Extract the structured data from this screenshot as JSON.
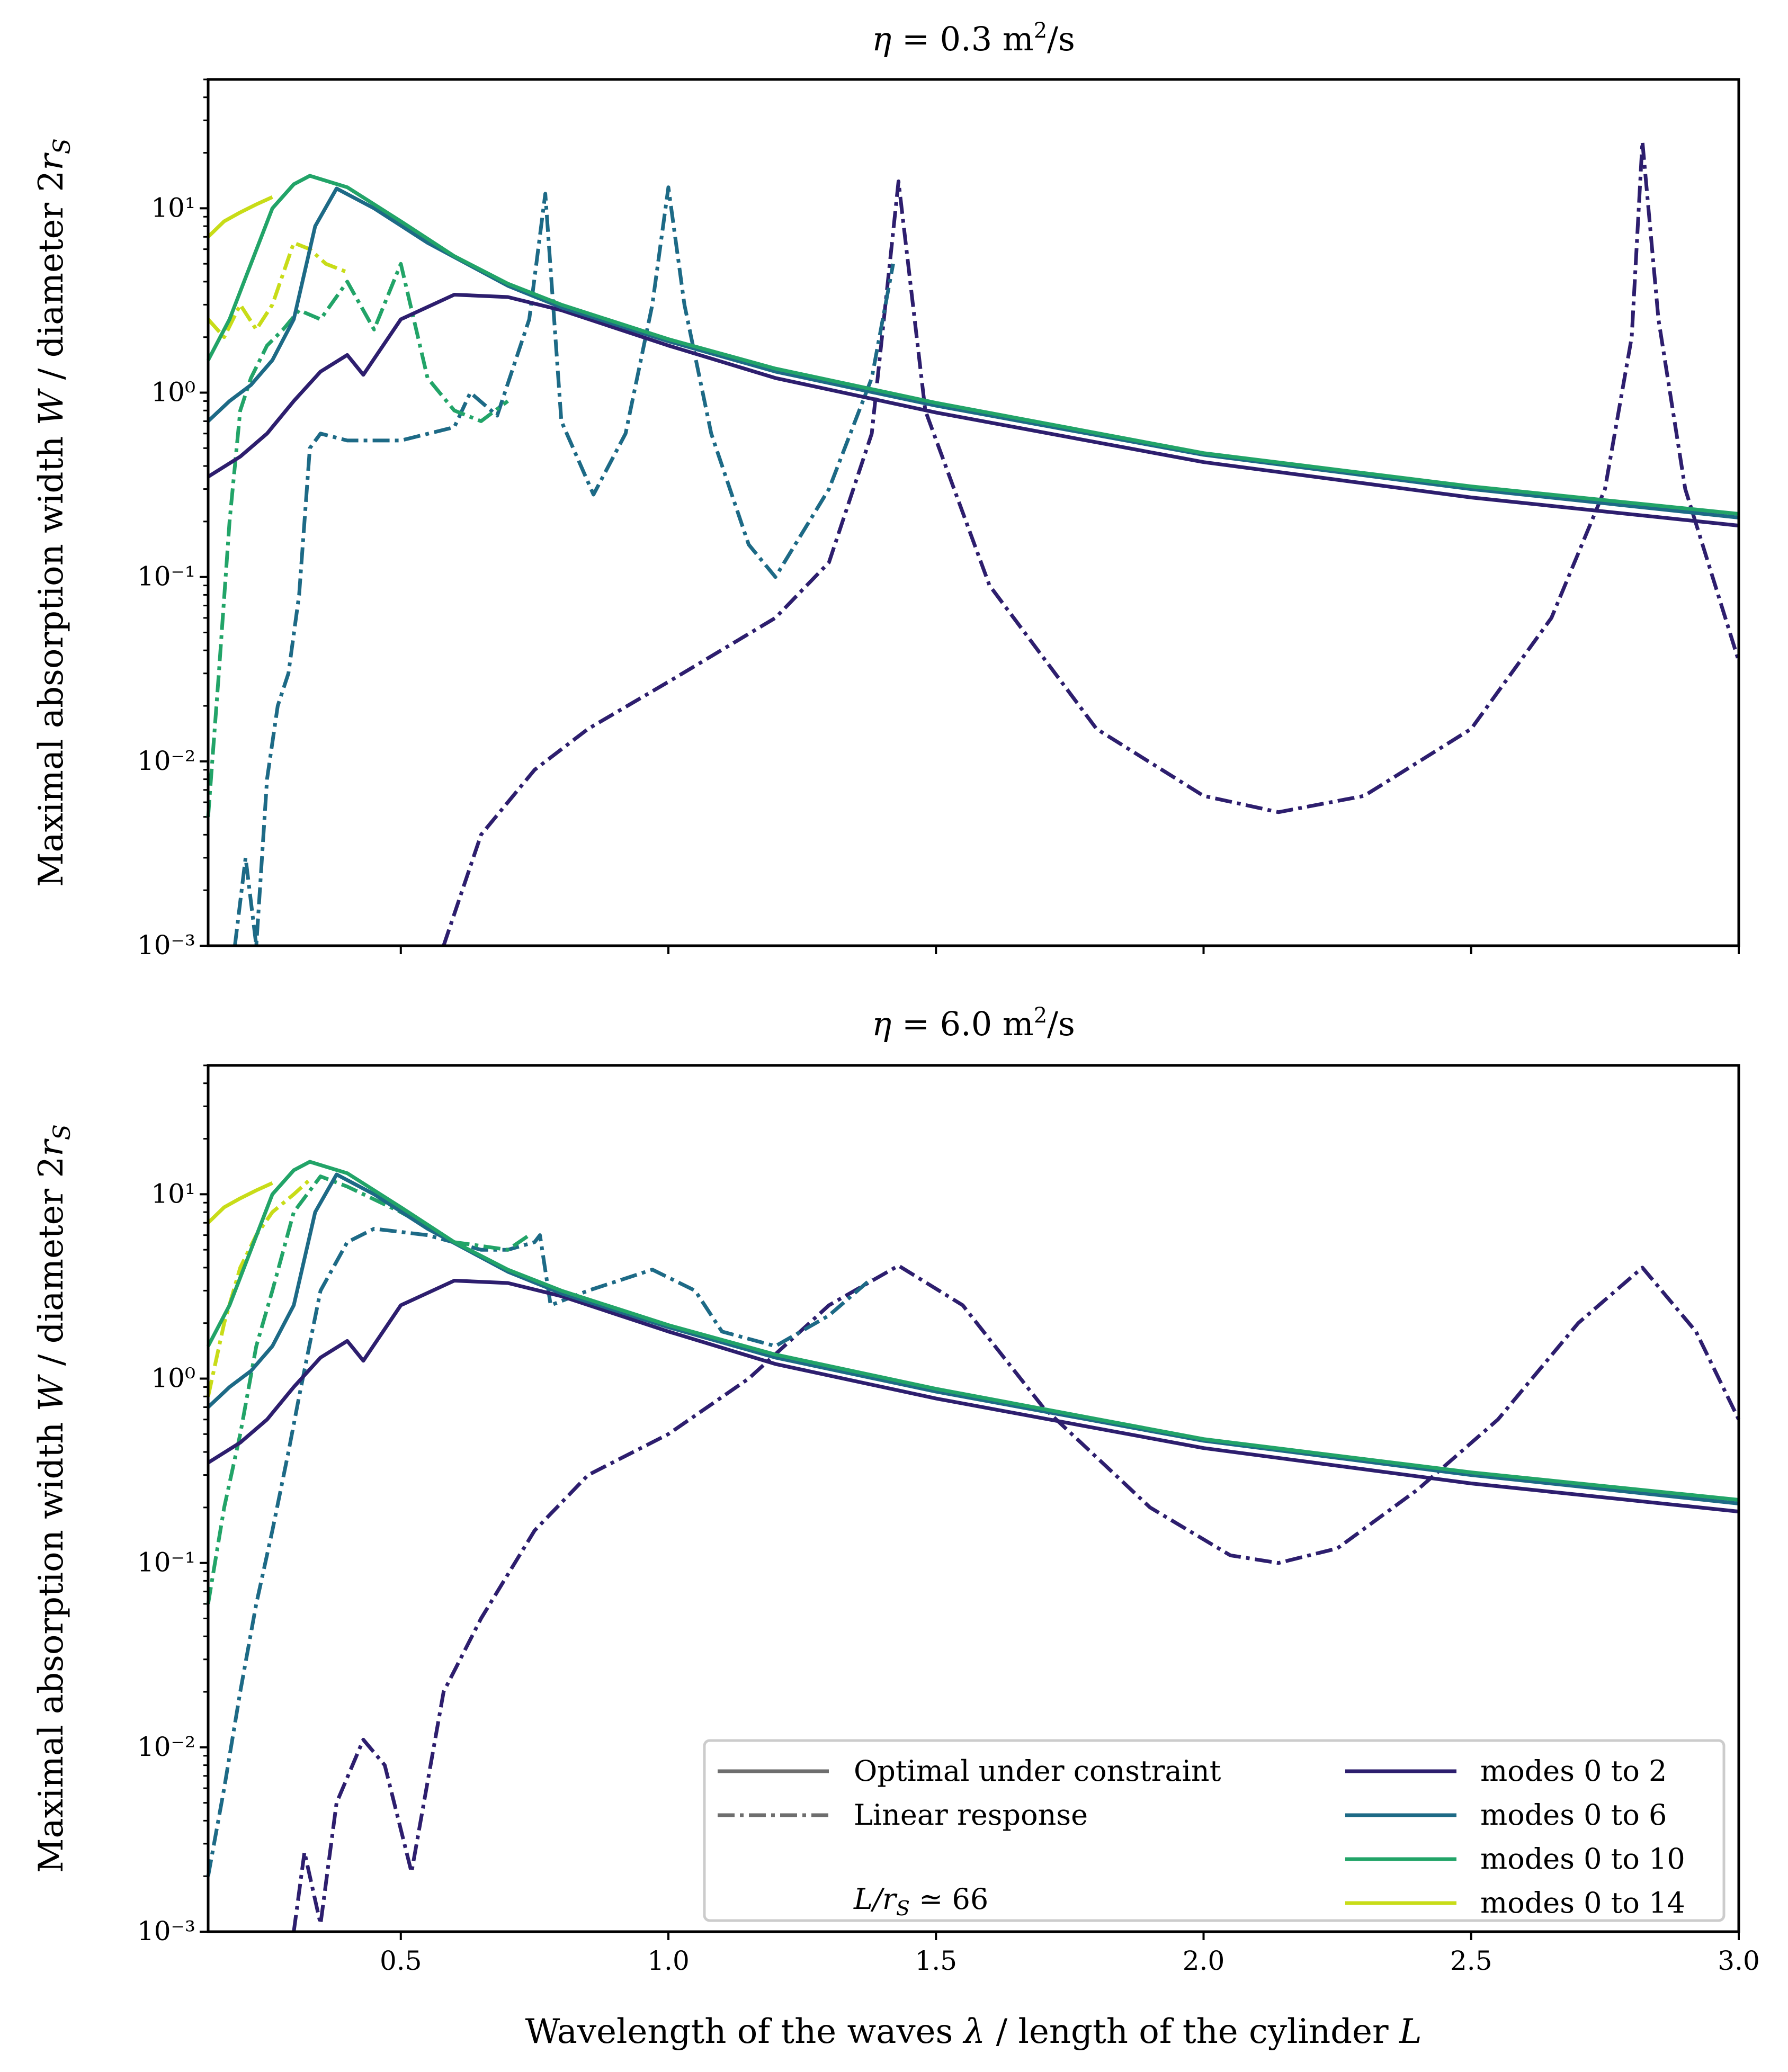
{
  "chart_data": [
    {
      "type": "line",
      "title": "η = 0.3 m²/s",
      "xlabel": "",
      "ylabel": "Maximal absorption width W / diameter 2r_S",
      "yscale": "log",
      "xlim": [
        0.14,
        3.0
      ],
      "ylim": [
        0.001,
        50
      ],
      "x_ticks": [
        "",
        "",
        "",
        "",
        "",
        ""
      ],
      "y_ticks": [
        "10⁻³",
        "10⁻²",
        "10⁻¹",
        "10⁰",
        "10¹"
      ],
      "series": [
        {
          "name": "modes 0 to 2 (optimal under constraint)",
          "color": "#2d1e6e",
          "style": "solid",
          "x": [
            0.14,
            0.2,
            0.25,
            0.3,
            0.35,
            0.4,
            0.43,
            0.5,
            0.6,
            0.7,
            0.8,
            1.0,
            1.2,
            1.5,
            2.0,
            2.5,
            3.0
          ],
          "y": [
            0.35,
            0.45,
            0.6,
            0.9,
            1.3,
            1.6,
            1.25,
            2.5,
            3.4,
            3.3,
            2.8,
            1.8,
            1.2,
            0.78,
            0.42,
            0.27,
            0.19
          ]
        },
        {
          "name": "modes 0 to 6 (optimal under constraint)",
          "color": "#1d6a86",
          "style": "solid",
          "x": [
            0.14,
            0.18,
            0.22,
            0.26,
            0.3,
            0.34,
            0.38,
            0.45,
            0.55,
            0.7,
            0.8,
            1.0,
            1.2,
            1.5,
            2.0,
            2.5,
            3.0
          ],
          "y": [
            0.7,
            0.9,
            1.1,
            1.5,
            2.5,
            8,
            12.8,
            10,
            6.5,
            3.8,
            2.9,
            1.9,
            1.3,
            0.85,
            0.46,
            0.3,
            0.21
          ]
        },
        {
          "name": "modes 0 to 10 (optimal under constraint)",
          "color": "#22a468",
          "style": "solid",
          "x": [
            0.14,
            0.18,
            0.22,
            0.26,
            0.3,
            0.33,
            0.4,
            0.5,
            0.6,
            0.7,
            0.8,
            1.0,
            1.2,
            1.5,
            2.0,
            2.5,
            3.0
          ],
          "y": [
            1.5,
            2.5,
            5,
            10,
            13.5,
            15,
            13,
            8.5,
            5.5,
            3.9,
            3.0,
            1.95,
            1.35,
            0.88,
            0.47,
            0.31,
            0.22
          ]
        },
        {
          "name": "modes 0 to 14 (optimal under constraint)",
          "color": "#c8dc18",
          "style": "solid",
          "x": [
            0.14,
            0.17,
            0.2,
            0.23,
            0.26
          ],
          "y": [
            7,
            8.5,
            9.5,
            10.5,
            11.5
          ]
        },
        {
          "name": "modes 0 to 2 (linear response)",
          "color": "#2d1e6e",
          "style": "dashdot",
          "x": [
            0.58,
            0.65,
            0.75,
            0.85,
            1.0,
            1.2,
            1.3,
            1.38,
            1.43,
            1.48,
            1.6,
            1.8,
            2.0,
            2.14,
            2.3,
            2.5,
            2.65,
            2.75,
            2.8,
            2.82,
            2.85,
            2.9,
            3.0
          ],
          "y": [
            0.001,
            0.004,
            0.009,
            0.015,
            0.027,
            0.06,
            0.12,
            0.6,
            14,
            0.8,
            0.09,
            0.015,
            0.0065,
            0.0053,
            0.0065,
            0.015,
            0.06,
            0.3,
            2,
            23,
            2.5,
            0.3,
            0.035
          ]
        },
        {
          "name": "modes 0 to 6 (linear response)",
          "color": "#1d6a86",
          "style": "dashdot",
          "x": [
            0.19,
            0.21,
            0.23,
            0.25,
            0.27,
            0.29,
            0.31,
            0.33,
            0.35,
            0.4,
            0.5,
            0.6,
            0.63,
            0.68,
            0.74,
            0.77,
            0.8,
            0.86,
            0.92,
            0.97,
            1.0,
            1.03,
            1.08,
            1.15,
            1.2,
            1.3,
            1.38,
            1.42
          ],
          "y": [
            0.001,
            0.003,
            0.001,
            0.008,
            0.02,
            0.03,
            0.08,
            0.5,
            0.6,
            0.55,
            0.55,
            0.65,
            1.0,
            0.75,
            2.5,
            12,
            0.7,
            0.28,
            0.6,
            3,
            13,
            3,
            0.6,
            0.15,
            0.1,
            0.3,
            1.2,
            5
          ]
        },
        {
          "name": "modes 0 to 10 (linear response)",
          "color": "#22a468",
          "style": "dashdot",
          "x": [
            0.14,
            0.16,
            0.18,
            0.2,
            0.22,
            0.25,
            0.28,
            0.31,
            0.35,
            0.4,
            0.45,
            0.5,
            0.55,
            0.6,
            0.65,
            0.7
          ],
          "y": [
            0.005,
            0.03,
            0.2,
            0.8,
            1.2,
            1.8,
            2.2,
            2.8,
            2.5,
            4,
            2.2,
            5,
            1.2,
            0.8,
            0.7,
            0.9
          ]
        },
        {
          "name": "modes 0 to 14 (linear response)",
          "color": "#c8dc18",
          "style": "dashdot",
          "x": [
            0.14,
            0.17,
            0.2,
            0.23,
            0.26,
            0.3,
            0.33,
            0.36,
            0.4
          ],
          "y": [
            2.5,
            2,
            3,
            2.2,
            3,
            6.5,
            6,
            5,
            4.5
          ]
        }
      ]
    },
    {
      "type": "line",
      "title": "η = 6.0 m²/s",
      "xlabel": "Wavelength of the waves λ / length of the cylinder L",
      "ylabel": "Maximal absorption width W / diameter 2r_S",
      "yscale": "log",
      "xlim": [
        0.14,
        3.0
      ],
      "ylim": [
        0.001,
        50
      ],
      "x_ticks": [
        "0.5",
        "1.0",
        "1.5",
        "2.0",
        "2.5",
        "3.0"
      ],
      "y_ticks": [
        "10⁻³",
        "10⁻²",
        "10⁻¹",
        "10⁰",
        "10¹"
      ],
      "series": [
        {
          "name": "modes 0 to 2 (optimal under constraint)",
          "color": "#2d1e6e",
          "style": "solid",
          "x": [
            0.14,
            0.2,
            0.25,
            0.3,
            0.35,
            0.4,
            0.43,
            0.5,
            0.6,
            0.7,
            0.8,
            1.0,
            1.2,
            1.5,
            2.0,
            2.5,
            3.0
          ],
          "y": [
            0.35,
            0.45,
            0.6,
            0.9,
            1.3,
            1.6,
            1.25,
            2.5,
            3.4,
            3.3,
            2.8,
            1.8,
            1.2,
            0.78,
            0.42,
            0.27,
            0.19
          ]
        },
        {
          "name": "modes 0 to 6 (optimal under constraint)",
          "color": "#1d6a86",
          "style": "solid",
          "x": [
            0.14,
            0.18,
            0.22,
            0.26,
            0.3,
            0.34,
            0.38,
            0.45,
            0.55,
            0.7,
            0.8,
            1.0,
            1.2,
            1.5,
            2.0,
            2.5,
            3.0
          ],
          "y": [
            0.7,
            0.9,
            1.1,
            1.5,
            2.5,
            8,
            12.8,
            10,
            6.5,
            3.8,
            2.9,
            1.9,
            1.3,
            0.85,
            0.46,
            0.3,
            0.21
          ]
        },
        {
          "name": "modes 0 to 10 (optimal under constraint)",
          "color": "#22a468",
          "style": "solid",
          "x": [
            0.14,
            0.18,
            0.22,
            0.26,
            0.3,
            0.33,
            0.4,
            0.5,
            0.6,
            0.7,
            0.8,
            1.0,
            1.2,
            1.5,
            2.0,
            2.5,
            3.0
          ],
          "y": [
            1.5,
            2.5,
            5,
            10,
            13.5,
            15,
            13,
            8.5,
            5.5,
            3.9,
            3.0,
            1.95,
            1.35,
            0.88,
            0.47,
            0.31,
            0.22
          ]
        },
        {
          "name": "modes 0 to 14 (optimal under constraint)",
          "color": "#c8dc18",
          "style": "solid",
          "x": [
            0.14,
            0.17,
            0.2,
            0.23,
            0.26
          ],
          "y": [
            7,
            8.5,
            9.5,
            10.5,
            11.5
          ]
        },
        {
          "name": "modes 0 to 2 (linear response)",
          "color": "#2d1e6e",
          "style": "dashdot",
          "x": [
            0.3,
            0.32,
            0.35,
            0.38,
            0.43,
            0.47,
            0.52,
            0.58,
            0.65,
            0.75,
            0.85,
            1.0,
            1.15,
            1.3,
            1.43,
            1.55,
            1.7,
            1.9,
            2.05,
            2.14,
            2.25,
            2.4,
            2.55,
            2.7,
            2.82,
            2.92,
            3.0
          ],
          "y": [
            0.001,
            0.0027,
            0.0011,
            0.005,
            0.011,
            0.008,
            0.0021,
            0.02,
            0.05,
            0.15,
            0.3,
            0.5,
            1.0,
            2.5,
            4.1,
            2.5,
            0.7,
            0.2,
            0.11,
            0.1,
            0.12,
            0.25,
            0.6,
            2.0,
            4.0,
            1.8,
            0.6
          ]
        },
        {
          "name": "modes 0 to 6 (linear response)",
          "color": "#1d6a86",
          "style": "dashdot",
          "x": [
            0.14,
            0.17,
            0.2,
            0.23,
            0.26,
            0.29,
            0.31,
            0.35,
            0.4,
            0.45,
            0.55,
            0.65,
            0.7,
            0.75,
            0.76,
            0.78,
            0.85,
            0.97,
            1.05,
            1.1,
            1.2,
            1.3,
            1.38
          ],
          "y": [
            0.002,
            0.006,
            0.02,
            0.06,
            0.15,
            0.4,
            0.8,
            3,
            5.5,
            6.5,
            6,
            5,
            5,
            5.5,
            6.0,
            2.5,
            3.0,
            3.9,
            3.0,
            1.8,
            1.5,
            2.2,
            3.5
          ]
        },
        {
          "name": "modes 0 to 10 (linear response)",
          "color": "#22a468",
          "style": "dashdot",
          "x": [
            0.14,
            0.17,
            0.2,
            0.23,
            0.26,
            0.3,
            0.35,
            0.4,
            0.5,
            0.6,
            0.7,
            0.74
          ],
          "y": [
            0.06,
            0.2,
            0.5,
            1.5,
            3,
            8,
            12.5,
            11,
            8,
            5.5,
            5,
            6
          ]
        },
        {
          "name": "modes 0 to 14 (linear response)",
          "color": "#c8dc18",
          "style": "dashdot",
          "x": [
            0.14,
            0.17,
            0.2,
            0.23,
            0.26,
            0.3,
            0.33
          ],
          "y": [
            0.8,
            2,
            4,
            6,
            8,
            10,
            12
          ]
        }
      ]
    }
  ],
  "legend": {
    "style_entries": [
      {
        "label": "Optimal under constraint",
        "dash": "solid"
      },
      {
        "label": "Linear response",
        "dash": "dashdot"
      }
    ],
    "mode_entries": [
      {
        "label": "modes 0 to 2",
        "color": "#2d1e6e"
      },
      {
        "label": "modes 0 to 6",
        "color": "#1d6a86"
      },
      {
        "label": "modes 0 to 10",
        "color": "#22a468"
      },
      {
        "label": "modes 0 to 14",
        "color": "#c8dc18"
      }
    ],
    "style_color": "#6e6e6e",
    "note": "L/r_S ≃ 66"
  },
  "labels": {
    "ylabel_main": "Maximal absorption width ",
    "ylabel_var": "W",
    "ylabel_mid": " / diameter 2",
    "ylabel_r": "r",
    "ylabel_sub": "S",
    "xlabel_main": "Wavelength of the waves ",
    "xlabel_lambda": "λ",
    "xlabel_mid": " / length of the cylinder ",
    "xlabel_L": "L",
    "title1_eta": "η",
    "title1_value": " = 0.3 m",
    "title1_exp": "2",
    "title1_unit": "/s",
    "title2_eta": "η",
    "title2_value": " = 6.0 m",
    "title2_exp": "2",
    "title2_unit": "/s",
    "note_L": "L",
    "note_r": "/r",
    "note_sub": "S",
    "note_rest": " ≃ 66"
  }
}
